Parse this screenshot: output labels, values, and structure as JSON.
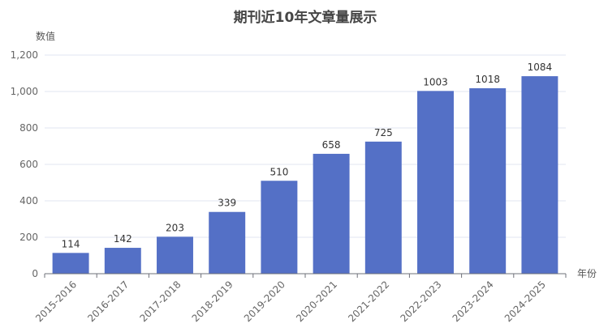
{
  "chart_data": {
    "type": "bar",
    "title": "期刊近10年文章量展示",
    "xlabel": "年份",
    "ylabel": "数值",
    "categories": [
      "2015-2016",
      "2016-2017",
      "2017-2018",
      "2018-2019",
      "2019-2020",
      "2020-2021",
      "2021-2022",
      "2022-2023",
      "2023-2024",
      "2024-2025"
    ],
    "values": [
      114,
      142,
      203,
      339,
      510,
      658,
      725,
      1003,
      1018,
      1084
    ],
    "ylim": [
      0,
      1200
    ],
    "yticks": [
      0,
      200,
      400,
      600,
      800,
      1000,
      1200
    ],
    "ytick_labels": [
      "0",
      "200",
      "400",
      "600",
      "800",
      "1,000",
      "1,200"
    ],
    "grid": true,
    "bar_color": "#5470c6",
    "grid_color": "#e0e6f1",
    "axis_color": "#6e7079"
  }
}
